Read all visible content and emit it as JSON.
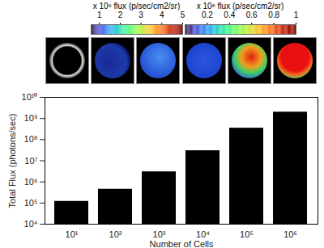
{
  "chart_data": {
    "type": "bar",
    "categories": [
      "10¹",
      "10²",
      "10³",
      "10⁴",
      "10⁵",
      "10⁶"
    ],
    "values": [
      120000,
      450000,
      3000000,
      30000000,
      350000000,
      2000000000
    ],
    "color": "#000000",
    "log": "y",
    "x_label": "Number of Cells",
    "y_label": "Total Flux (photons/sec)",
    "ylim": [
      10000,
      10000000000
    ],
    "yticks": [
      {
        "value": 10000,
        "label": "10⁴"
      },
      {
        "value": 100000,
        "label": "10⁵"
      },
      {
        "value": 1000000,
        "label": "10⁶"
      },
      {
        "value": 10000000,
        "label": "10⁷"
      },
      {
        "value": 100000000,
        "label": "10⁸"
      },
      {
        "value": 1000000000,
        "label": "10⁹"
      },
      {
        "value": 10000000000,
        "label": "10¹⁰"
      }
    ],
    "color_bars": [
      {
        "title": "x 10⁶ flux (p/sec/cm2/sr)",
        "range": [
          0.6,
          5
        ],
        "ticks": [
          1,
          2,
          3,
          4,
          5
        ]
      },
      {
        "title": "x 10⁸ flux (p/sec/cm2/sr)",
        "range": [
          0,
          1
        ],
        "ticks": [
          0.2,
          0.4,
          0.6,
          0.8,
          1
        ]
      }
    ]
  }
}
